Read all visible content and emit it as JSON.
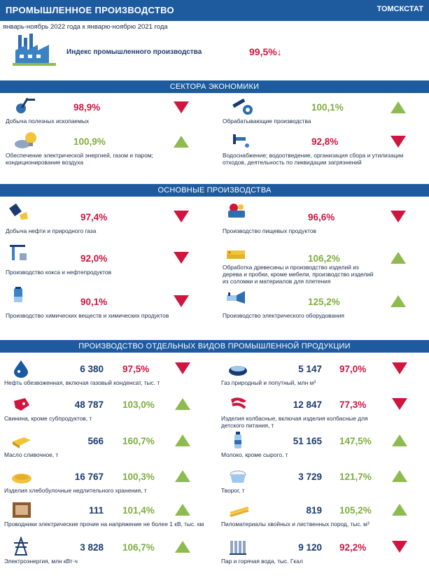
{
  "header": {
    "title": "ПРОМЫШЛЕННОЕ  ПРОИЗВОДСТВО",
    "org": "ТОМСКСТАТ"
  },
  "subtitle": "январь-ноябрь 2022 года к январю-ноябрю 2021 года",
  "index": {
    "label": "Индекс промышленного производства",
    "value": "99,5%↓"
  },
  "sections": {
    "sectors": "СЕКТОРА ЭКОНОМИКИ",
    "main": "ОСНОВНЫЕ ПРОИЗВОДСТВА",
    "products": "ПРОИЗВОДСТВО ОТДЕЛЬНЫХ ВИДОВ ПРОМЫШЛЕННОЙ ПРОДУКЦИИ"
  },
  "sectors": [
    {
      "label": "Добыча полезных ископаемых",
      "value": "98,9%",
      "trend": "down"
    },
    {
      "label": "Обрабатывающие производства",
      "value": "100,1%",
      "trend": "up"
    },
    {
      "label": "Обеспечение электрической энергией, газом и паром; кондиционирование воздуха",
      "value": "100,9%",
      "trend": "up"
    },
    {
      "label": "Водоснабжение; водоотведение, организация сбора и утилизации отходов, деятельность по ликвидации загрязнений",
      "value": "92,8%",
      "trend": "down"
    }
  ],
  "main": [
    {
      "label": "Добыча нефти и природного газа",
      "value": "97,4%",
      "trend": "down"
    },
    {
      "label": "Производство пищевых продуктов",
      "value": "96,6%",
      "trend": "down"
    },
    {
      "label": "Производство кокса и нефтепродуктов",
      "value": "92,0%",
      "trend": "down"
    },
    {
      "label": "Обработка древесины и производство изделий из дерева и пробки, кроме мебели, производство изделий из соломки и материалов для плетения",
      "value": "106,2%",
      "trend": "up"
    },
    {
      "label": "Производство химических веществ и химических продуктов",
      "value": "90,1%",
      "trend": "down"
    },
    {
      "label": "Производство электрического оборудования",
      "value": "125,2%",
      "trend": "up"
    }
  ],
  "products": [
    {
      "label": "Нефть обезвоженная, включая газовый конденсат, тыс. т",
      "qty": "6 380",
      "value": "97,5%",
      "trend": "down"
    },
    {
      "label": "Газ природный и попутный, млн м³",
      "qty": "5 147",
      "value": "97,0%",
      "trend": "down"
    },
    {
      "label": "Свинина, кроме субпродуктов, т",
      "qty": "48 787",
      "value": "103,0%",
      "trend": "up"
    },
    {
      "label": "Изделия колбасные, включая изделия колбасные для детского питания, т",
      "qty": "12 847",
      "value": "77,3%",
      "trend": "down"
    },
    {
      "label": "Масло сливочное, т",
      "qty": "566",
      "value": "160,7%",
      "trend": "up"
    },
    {
      "label": "Молоко, кроме сырого, т",
      "qty": "51 165",
      "value": "147,5%",
      "trend": "up"
    },
    {
      "label": "Изделия хлебобулочные недлительного хранения, т",
      "qty": "16 767",
      "value": "100,3%",
      "trend": "up"
    },
    {
      "label": "Творог, т",
      "qty": "3 729",
      "value": "121,7%",
      "trend": "up"
    },
    {
      "label": "Проводники электрические прочие на напряжение не более 1 кВ, тыс. км",
      "qty": "111",
      "value": "101,4%",
      "trend": "up"
    },
    {
      "label": "Пиломатериалы хвойных и лиственных пород, тыс. м³",
      "qty": "819",
      "value": "105,2%",
      "trend": "up"
    },
    {
      "label": "Электроэнергия, млн кВт·ч",
      "qty": "3 828",
      "value": "106,7%",
      "trend": "up"
    },
    {
      "label": "Пар и горячая вода, тыс. Гкал",
      "qty": "9 120",
      "value": "92,2%",
      "trend": "down"
    }
  ],
  "colors": {
    "band": "#1d5a9e",
    "down": "#d0153f",
    "up": "#8dbb4f"
  }
}
